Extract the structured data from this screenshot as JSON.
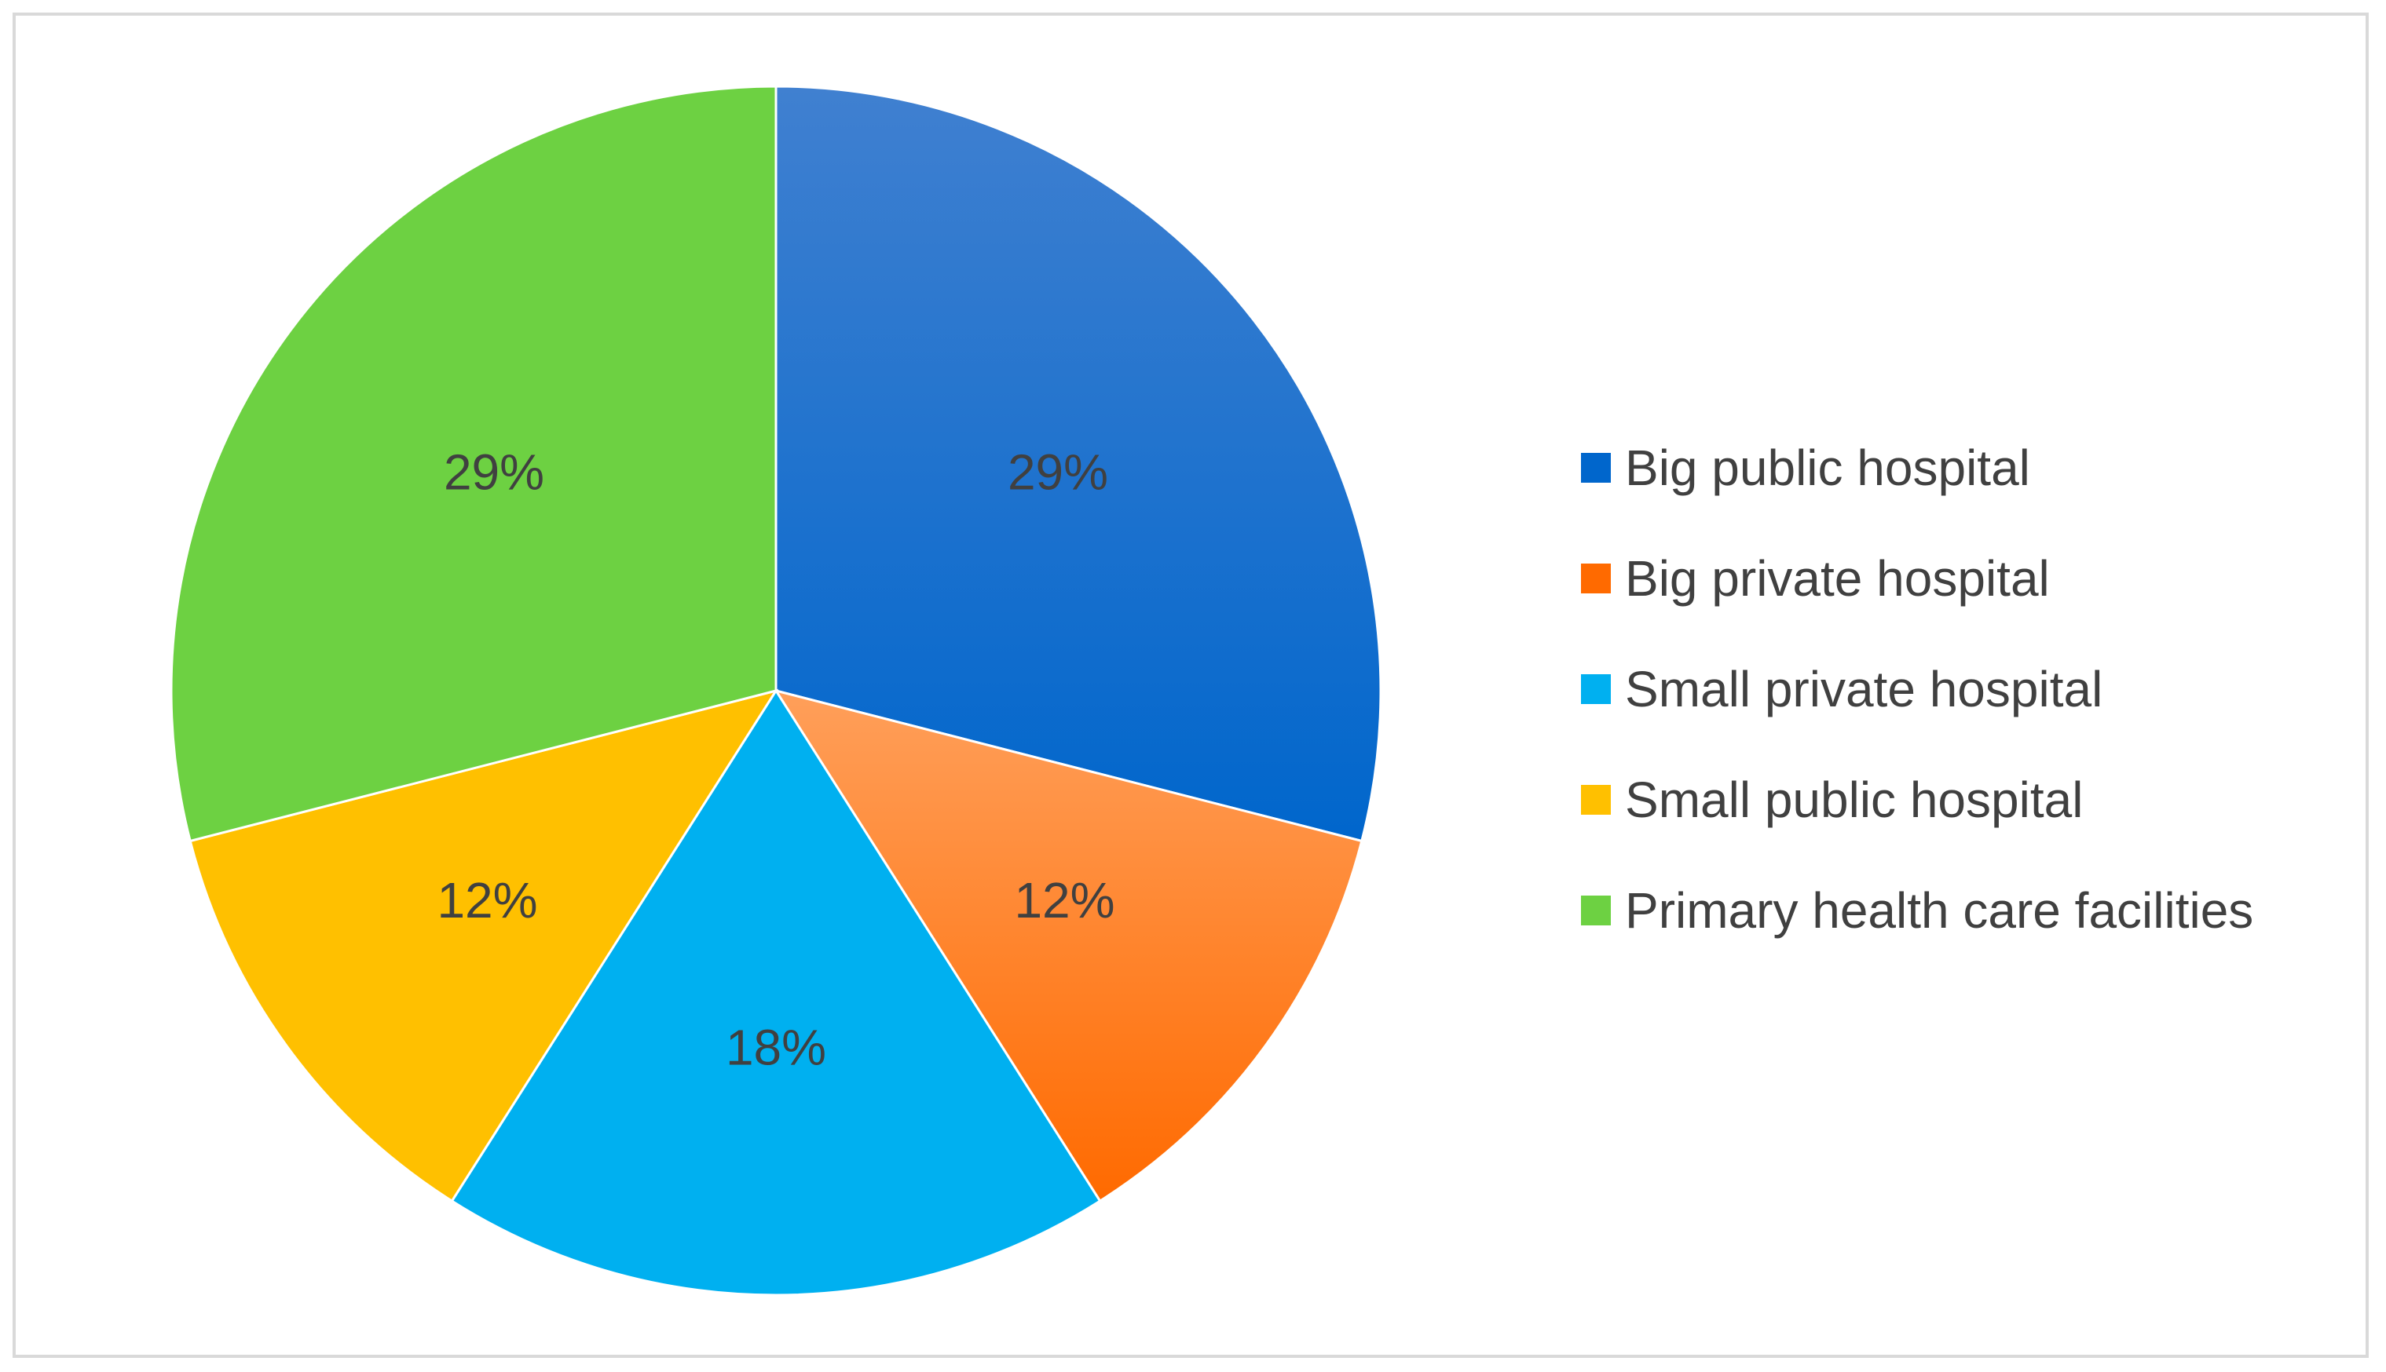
{
  "chart_data": {
    "type": "pie",
    "title": "",
    "slices": [
      {
        "label": "Big public hospital",
        "value": 29,
        "display": "29%",
        "color": "#0066cc",
        "highlight": "#4080d0"
      },
      {
        "label": "Big private hospital",
        "value": 12,
        "display": "12%",
        "color": "#ff6a00",
        "highlight": "#ff9f5a"
      },
      {
        "label": "Small private hospital",
        "value": 18,
        "display": "18%",
        "color": "#00b0f0",
        "highlight": "#00b0f0"
      },
      {
        "label": "Small public hospital",
        "value": 12,
        "display": "12%",
        "color": "#ffc000",
        "highlight": "#ffc000"
      },
      {
        "label": "Primary health care facilities",
        "value": 29,
        "display": "29%",
        "color": "#6dd142",
        "highlight": "#6dd142"
      }
    ],
    "start_angle_deg": 0,
    "direction": "clockwise",
    "legend_position": "right"
  }
}
